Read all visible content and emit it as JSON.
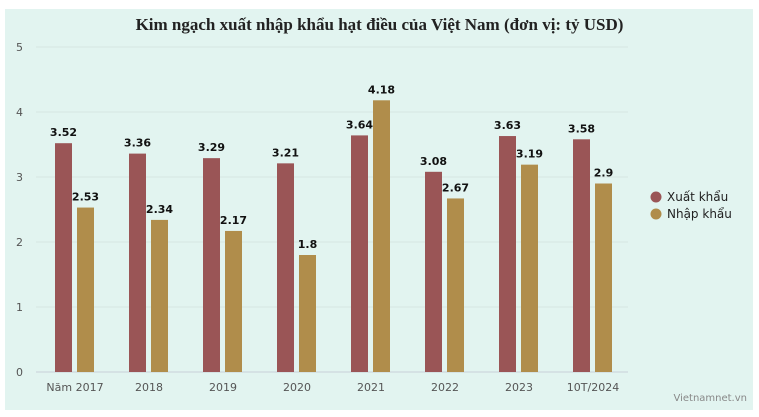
{
  "chart_data": {
    "type": "bar",
    "title": "Kim ngạch xuất nhập khẩu hạt điều của Việt Nam (đơn vị: tỷ USD)",
    "categories": [
      "Năm 2017",
      "2018",
      "2019",
      "2020",
      "2021",
      "2022",
      "2023",
      "10T/2024"
    ],
    "series": [
      {
        "name": "Xuất khẩu",
        "color": "#9a5556",
        "values": [
          3.52,
          3.36,
          3.29,
          3.21,
          3.64,
          3.08,
          3.63,
          3.58
        ]
      },
      {
        "name": "Nhập khẩu",
        "color": "#b08d4b",
        "values": [
          2.53,
          2.34,
          2.17,
          1.8,
          4.18,
          2.67,
          3.19,
          2.9
        ]
      }
    ],
    "ylim": [
      0,
      5
    ],
    "yticks": [
      0,
      1,
      2,
      3,
      4,
      5
    ],
    "grid": true,
    "legend": "right",
    "xlabel": "",
    "ylabel": ""
  },
  "credit": "Vietnamnet.vn"
}
